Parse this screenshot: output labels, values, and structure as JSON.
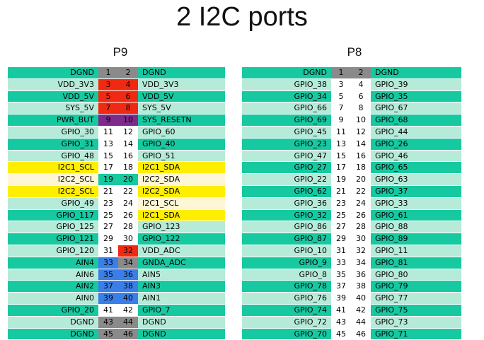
{
  "title": "2 I2C ports",
  "colors": {
    "teal": "#17c9a0",
    "mint": "#b7ebd9",
    "gray": "#8a8a8a",
    "red": "#f02a12",
    "orange_red": "#e8400c",
    "purple": "#7d2a8a",
    "yellow": "#ffee00",
    "cream": "#fff6d6",
    "blue": "#3a7fe8",
    "white": "#ffffff"
  },
  "headers": {
    "p9": {
      "label": "P9",
      "rows": [
        {
          "left": "DGND",
          "lp": "1",
          "rp": "2",
          "right": "DGND",
          "lc": "teal",
          "pc": "gray",
          "rc": "teal"
        },
        {
          "left": "VDD_3V3",
          "lp": "3",
          "rp": "4",
          "right": "VDD_3V3",
          "lc": "mint",
          "pc": "red",
          "rc": "mint"
        },
        {
          "left": "VDD_5V",
          "lp": "5",
          "rp": "6",
          "right": "VDD_5V",
          "lc": "teal",
          "pc": "red",
          "rc": "teal"
        },
        {
          "left": "SYS_5V",
          "lp": "7",
          "rp": "8",
          "right": "SYS_5V",
          "lc": "mint",
          "pc": "red",
          "rc": "mint"
        },
        {
          "left": "PWR_BUT",
          "lp": "9",
          "rp": "10",
          "right": "SYS_RESETN",
          "lc": "teal",
          "pc": "purple",
          "rc": "teal"
        },
        {
          "left": "GPIO_30",
          "lp": "11",
          "rp": "12",
          "right": "GPIO_60",
          "lc": "mint",
          "pc": "white",
          "rc": "mint"
        },
        {
          "left": "GPIO_31",
          "lp": "13",
          "rp": "14",
          "right": "GPIO_40",
          "lc": "teal",
          "pc": "white",
          "rc": "teal"
        },
        {
          "left": "GPIO_48",
          "lp": "15",
          "rp": "16",
          "right": "GPIO_51",
          "lc": "mint",
          "pc": "white",
          "rc": "mint"
        },
        {
          "left": "I2C1_SCL",
          "lp": "17",
          "rp": "18",
          "right": "I2C1_SDA",
          "lc": "yellow",
          "pc": "white",
          "rc": "yellow"
        },
        {
          "left": "I2C2_SCL",
          "lp": "19",
          "rp": "20",
          "right": "I2C2_SDA",
          "lc": "cream",
          "pc": "teal",
          "rc": "cream"
        },
        {
          "left": "I2C2_SCL",
          "lp": "21",
          "rp": "22",
          "right": "I2C2_SDA",
          "lc": "yellow",
          "pc": "white",
          "rc": "yellow"
        },
        {
          "left": "GPIO_49",
          "lp": "23",
          "rp": "24",
          "right": "I2C1_SCL",
          "lc": "mint",
          "pc": "white",
          "rc": "cream"
        },
        {
          "left": "GPIO_117",
          "lp": "25",
          "rp": "26",
          "right": "I2C1_SDA",
          "lc": "teal",
          "pc": "white",
          "rc": "yellow"
        },
        {
          "left": "GPIO_125",
          "lp": "27",
          "rp": "28",
          "right": "GPIO_123",
          "lc": "mint",
          "pc": "white",
          "rc": "mint"
        },
        {
          "left": "GPIO_121",
          "lp": "29",
          "rp": "30",
          "right": "GPIO_122",
          "lc": "teal",
          "pc": "white",
          "rc": "teal"
        },
        {
          "left": "GPIO_120",
          "lp": "31",
          "rp": "32",
          "right": "VDD_ADC",
          "lc": "mint",
          "pc": "white",
          "rpc": "red",
          "rc": "mint"
        },
        {
          "left": "AIN4",
          "lp": "33",
          "rp": "34",
          "right": "GNDA_ADC",
          "lc": "teal",
          "lpc": "blue",
          "rpc": "gray",
          "rc": "teal"
        },
        {
          "left": "AIN6",
          "lp": "35",
          "rp": "36",
          "right": "AIN5",
          "lc": "mint",
          "pc": "blue",
          "rc": "mint"
        },
        {
          "left": "AIN2",
          "lp": "37",
          "rp": "38",
          "right": "AIN3",
          "lc": "teal",
          "pc": "blue",
          "rc": "teal"
        },
        {
          "left": "AIN0",
          "lp": "39",
          "rp": "40",
          "right": "AIN1",
          "lc": "mint",
          "pc": "blue",
          "rc": "mint"
        },
        {
          "left": "GPIO_20",
          "lp": "41",
          "rp": "42",
          "right": "GPIO_7",
          "lc": "teal",
          "pc": "white",
          "rc": "teal"
        },
        {
          "left": "DGND",
          "lp": "43",
          "rp": "44",
          "right": "DGND",
          "lc": "mint",
          "pc": "gray",
          "rc": "mint"
        },
        {
          "left": "DGND",
          "lp": "45",
          "rp": "46",
          "right": "DGND",
          "lc": "teal",
          "pc": "gray",
          "rc": "teal"
        }
      ]
    },
    "p8": {
      "label": "P8",
      "rows": [
        {
          "left": "DGND",
          "lp": "1",
          "rp": "2",
          "right": "DGND",
          "lc": "teal",
          "pc": "gray",
          "rc": "teal"
        },
        {
          "left": "GPIO_38",
          "lp": "3",
          "rp": "4",
          "right": "GPIO_39",
          "lc": "mint",
          "pc": "white",
          "rc": "mint"
        },
        {
          "left": "GPIO_34",
          "lp": "5",
          "rp": "6",
          "right": "GPIO_35",
          "lc": "teal",
          "pc": "white",
          "rc": "teal"
        },
        {
          "left": "GPIO_66",
          "lp": "7",
          "rp": "8",
          "right": "GPIO_67",
          "lc": "mint",
          "pc": "white",
          "rc": "mint"
        },
        {
          "left": "GPIO_69",
          "lp": "9",
          "rp": "10",
          "right": "GPIO_68",
          "lc": "teal",
          "pc": "white",
          "rc": "teal"
        },
        {
          "left": "GPIO_45",
          "lp": "11",
          "rp": "12",
          "right": "GPIO_44",
          "lc": "mint",
          "pc": "white",
          "rc": "mint"
        },
        {
          "left": "GPIO_23",
          "lp": "13",
          "rp": "14",
          "right": "GPIO_26",
          "lc": "teal",
          "pc": "white",
          "rc": "teal"
        },
        {
          "left": "GPIO_47",
          "lp": "15",
          "rp": "16",
          "right": "GPIO_46",
          "lc": "mint",
          "pc": "white",
          "rc": "mint"
        },
        {
          "left": "GPIO_27",
          "lp": "17",
          "rp": "18",
          "right": "GPIO_65",
          "lc": "teal",
          "pc": "white",
          "rc": "teal"
        },
        {
          "left": "GPIO_22",
          "lp": "19",
          "rp": "20",
          "right": "GPIO_63",
          "lc": "mint",
          "pc": "white",
          "rc": "mint"
        },
        {
          "left": "GPIO_62",
          "lp": "21",
          "rp": "22",
          "right": "GPIO_37",
          "lc": "teal",
          "pc": "white",
          "rc": "teal"
        },
        {
          "left": "GPIO_36",
          "lp": "23",
          "rp": "24",
          "right": "GPIO_33",
          "lc": "mint",
          "pc": "white",
          "rc": "mint"
        },
        {
          "left": "GPIO_32",
          "lp": "25",
          "rp": "26",
          "right": "GPIO_61",
          "lc": "teal",
          "pc": "white",
          "rc": "teal"
        },
        {
          "left": "GPIO_86",
          "lp": "27",
          "rp": "28",
          "right": "GPIO_88",
          "lc": "mint",
          "pc": "white",
          "rc": "mint"
        },
        {
          "left": "GPIO_87",
          "lp": "29",
          "rp": "30",
          "right": "GPIO_89",
          "lc": "teal",
          "pc": "white",
          "rc": "teal"
        },
        {
          "left": "GPIO_10",
          "lp": "31",
          "rp": "32",
          "right": "GPIO_11",
          "lc": "mint",
          "pc": "white",
          "rc": "mint"
        },
        {
          "left": "GPIO_9",
          "lp": "33",
          "rp": "34",
          "right": "GPIO_81",
          "lc": "teal",
          "pc": "white",
          "rc": "teal"
        },
        {
          "left": "GPIO_8",
          "lp": "35",
          "rp": "36",
          "right": "GPIO_80",
          "lc": "mint",
          "pc": "white",
          "rc": "mint"
        },
        {
          "left": "GPIO_78",
          "lp": "37",
          "rp": "38",
          "right": "GPIO_79",
          "lc": "teal",
          "pc": "white",
          "rc": "teal"
        },
        {
          "left": "GPIO_76",
          "lp": "39",
          "rp": "40",
          "right": "GPIO_77",
          "lc": "mint",
          "pc": "white",
          "rc": "mint"
        },
        {
          "left": "GPIO_74",
          "lp": "41",
          "rp": "42",
          "right": "GPIO_75",
          "lc": "teal",
          "pc": "white",
          "rc": "teal"
        },
        {
          "left": "GPIO_72",
          "lp": "43",
          "rp": "44",
          "right": "GPIO_73",
          "lc": "mint",
          "pc": "white",
          "rc": "mint"
        },
        {
          "left": "GPIO_70",
          "lp": "45",
          "rp": "46",
          "right": "GPIO_71",
          "lc": "teal",
          "pc": "white",
          "rc": "teal"
        }
      ]
    }
  }
}
